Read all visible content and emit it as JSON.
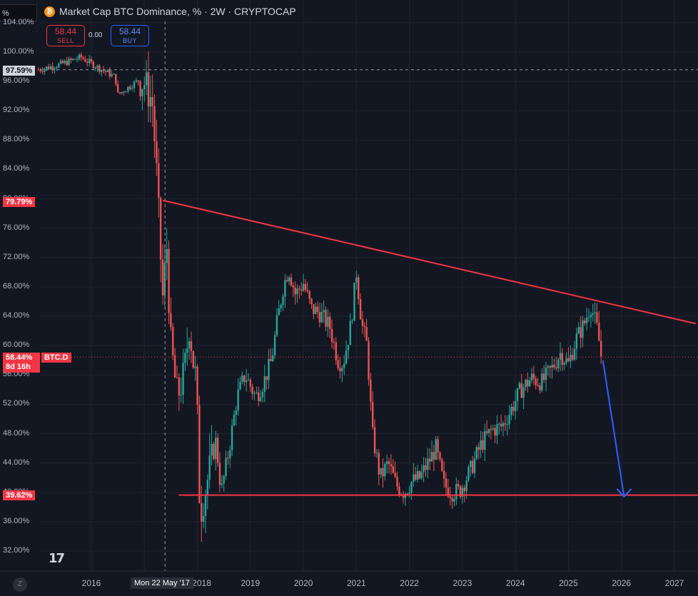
{
  "header": {
    "symbol_input": "%",
    "icon": "bitcoin-icon",
    "title": "Market Cap BTC Dominance, % · 2W · CRYPTOCAP"
  },
  "trade": {
    "sell_price": "58.44",
    "sell_label": "SELL",
    "spread": "0.00",
    "buy_price": "58.44",
    "buy_label": "BUY"
  },
  "labels": {
    "top_price": "97.59%",
    "resistance_start": "79.79%",
    "current_price": "58.44%",
    "countdown": "8d 16h",
    "ticker": "BTC.D",
    "support": "39.62%",
    "crosshair_date": "Mon 22 May '17"
  },
  "colors": {
    "background": "#131722",
    "up": "#26a69a",
    "down": "#ef5350",
    "trendline": "#f23645",
    "projection": "#2962ff"
  },
  "chart_data": {
    "type": "candlestick",
    "title": "Market Cap BTC Dominance, % · 2W · CRYPTOCAP",
    "y_unit": "%",
    "ylim": [
      29.8,
      104.5
    ],
    "y_ticks": [
      "104.00%",
      "100.00%",
      "96.00%",
      "92.00%",
      "88.00%",
      "84.00%",
      "80.00%",
      "76.00%",
      "72.00%",
      "68.00%",
      "64.00%",
      "60.00%",
      "56.00%",
      "52.00%",
      "48.00%",
      "44.00%",
      "40.00%",
      "36.00%",
      "32.00%"
    ],
    "y_tick_values": [
      104,
      100,
      96,
      92,
      88,
      84,
      80,
      76,
      72,
      68,
      64,
      60,
      56,
      52,
      48,
      44,
      40,
      36,
      32
    ],
    "x_ticks": [
      "2016",
      "2017",
      "2018",
      "2019",
      "2020",
      "2021",
      "2022",
      "2023",
      "2024",
      "2025",
      "2026",
      "2027"
    ],
    "x_tick_years": [
      2016,
      2017,
      2018,
      2019,
      2020,
      2021,
      2022,
      2023,
      2024,
      2025,
      2026,
      2027
    ],
    "xlim": [
      2014.85,
      2027.4
    ],
    "price_path": [
      [
        2015.0,
        97.6
      ],
      [
        2015.4,
        98.3
      ],
      [
        2015.8,
        99.3
      ],
      [
        2016.1,
        98.0
      ],
      [
        2016.45,
        96.6
      ],
      [
        2016.5,
        94.2
      ],
      [
        2016.9,
        96.2
      ],
      [
        2017.0,
        95.8
      ],
      [
        2017.15,
        93.3
      ],
      [
        2017.22,
        85.0
      ],
      [
        2017.28,
        76.0
      ],
      [
        2017.35,
        66.0
      ],
      [
        2017.42,
        74.0
      ],
      [
        2017.5,
        60.0
      ],
      [
        2017.62,
        53.0
      ],
      [
        2017.75,
        56.0
      ],
      [
        2017.85,
        63.0
      ],
      [
        2017.92,
        58.0
      ],
      [
        2017.98,
        55.0
      ],
      [
        2018.05,
        37.0
      ],
      [
        2018.2,
        42.0
      ],
      [
        2018.35,
        47.0
      ],
      [
        2018.45,
        40.0
      ],
      [
        2018.6,
        46.0
      ],
      [
        2018.75,
        53.0
      ],
      [
        2018.9,
        56.0
      ],
      [
        2019.1,
        53.0
      ],
      [
        2019.25,
        55.0
      ],
      [
        2019.4,
        58.0
      ],
      [
        2019.5,
        63.0
      ],
      [
        2019.62,
        68.0
      ],
      [
        2019.72,
        70.5
      ],
      [
        2019.85,
        67.0
      ],
      [
        2020.0,
        68.5
      ],
      [
        2020.15,
        65.0
      ],
      [
        2020.3,
        64.5
      ],
      [
        2020.5,
        62.5
      ],
      [
        2020.65,
        58.0
      ],
      [
        2020.75,
        57.5
      ],
      [
        2020.9,
        63.0
      ],
      [
        2021.0,
        70.0
      ],
      [
        2021.1,
        63.0
      ],
      [
        2021.2,
        60.0
      ],
      [
        2021.3,
        48.0
      ],
      [
        2021.45,
        42.0
      ],
      [
        2021.6,
        44.0
      ],
      [
        2021.75,
        41.0
      ],
      [
        2021.9,
        40.0
      ],
      [
        2022.05,
        41.5
      ],
      [
        2022.2,
        42.0
      ],
      [
        2022.35,
        44.0
      ],
      [
        2022.5,
        46.0
      ],
      [
        2022.65,
        41.0
      ],
      [
        2022.8,
        40.0
      ],
      [
        2022.95,
        40.2
      ],
      [
        2023.15,
        43.0
      ],
      [
        2023.35,
        46.5
      ],
      [
        2023.55,
        48.5
      ],
      [
        2023.75,
        49.0
      ],
      [
        2023.9,
        51.0
      ],
      [
        2024.1,
        54.0
      ],
      [
        2024.3,
        55.5
      ],
      [
        2024.5,
        55.0
      ],
      [
        2024.7,
        57.0
      ],
      [
        2024.85,
        59.0
      ],
      [
        2025.0,
        57.5
      ],
      [
        2025.15,
        61.0
      ],
      [
        2025.3,
        63.0
      ],
      [
        2025.42,
        65.5
      ],
      [
        2025.48,
        64.0
      ],
      [
        2025.55,
        62.0
      ],
      [
        2025.62,
        58.4
      ]
    ],
    "annotations": {
      "top_price_line": 97.59,
      "current_price": 58.44,
      "support_level": 39.62,
      "resistance_trendline": {
        "from": [
          2017.35,
          79.79
        ],
        "to": [
          2027.4,
          63.0
        ]
      },
      "projection_arrow": {
        "from": [
          2025.65,
          58.0
        ],
        "to": [
          2026.05,
          39.4
        ]
      },
      "crosshair_date": 2017.39
    }
  }
}
